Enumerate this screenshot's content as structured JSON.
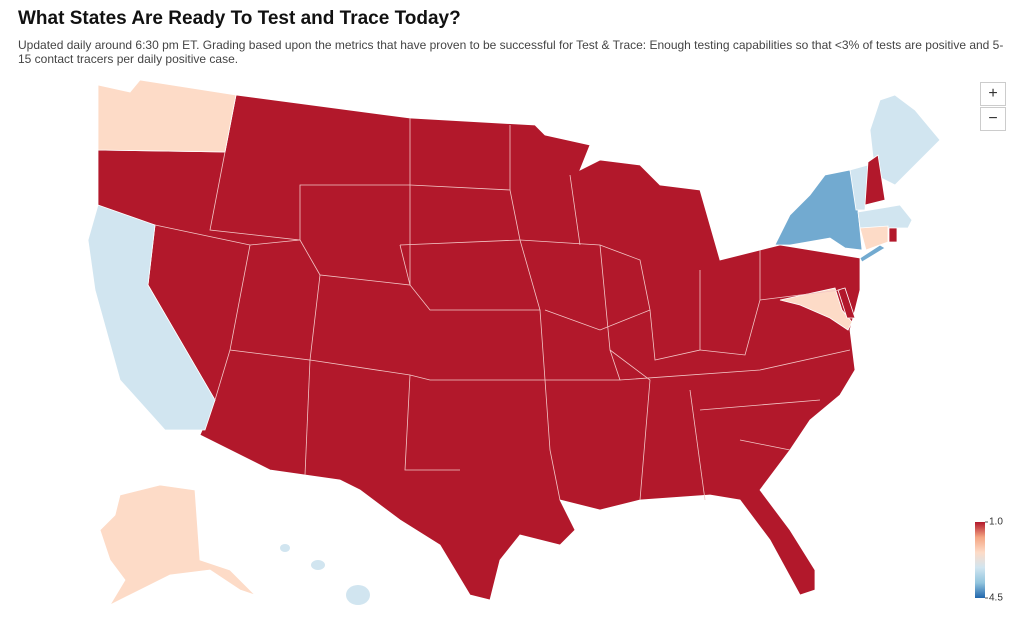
{
  "chart_data": {
    "type": "choropleth",
    "title": "What States Are Ready To Test and Trace Today?",
    "subtitle": "Updated daily around 6:30 pm ET. Grading based upon the metrics that have proven to be successful for Test & Trace: Enough testing capabilities so that <3% of tests are positive and 5-15 contact tracers per daily positive case.",
    "values": [
      1.0,
      2.4,
      3.1,
      2.4,
      3.1,
      4.0,
      3.1,
      3.1,
      1.0,
      3.1,
      2.4,
      1.0,
      2.4,
      1.0
    ],
    "colorscale": [
      "#b2182b",
      "#f4a582",
      "#fddbc7",
      "#d1e5f0",
      "#92c5de",
      "#2166ac"
    ],
    "clim": [
      1.0,
      4.5
    ],
    "cticks": [
      {
        "value": 1.0,
        "label": "1.0"
      },
      4.5
    ],
    "zoom_in": "+",
    "zoom_out": "−"
  }
}
